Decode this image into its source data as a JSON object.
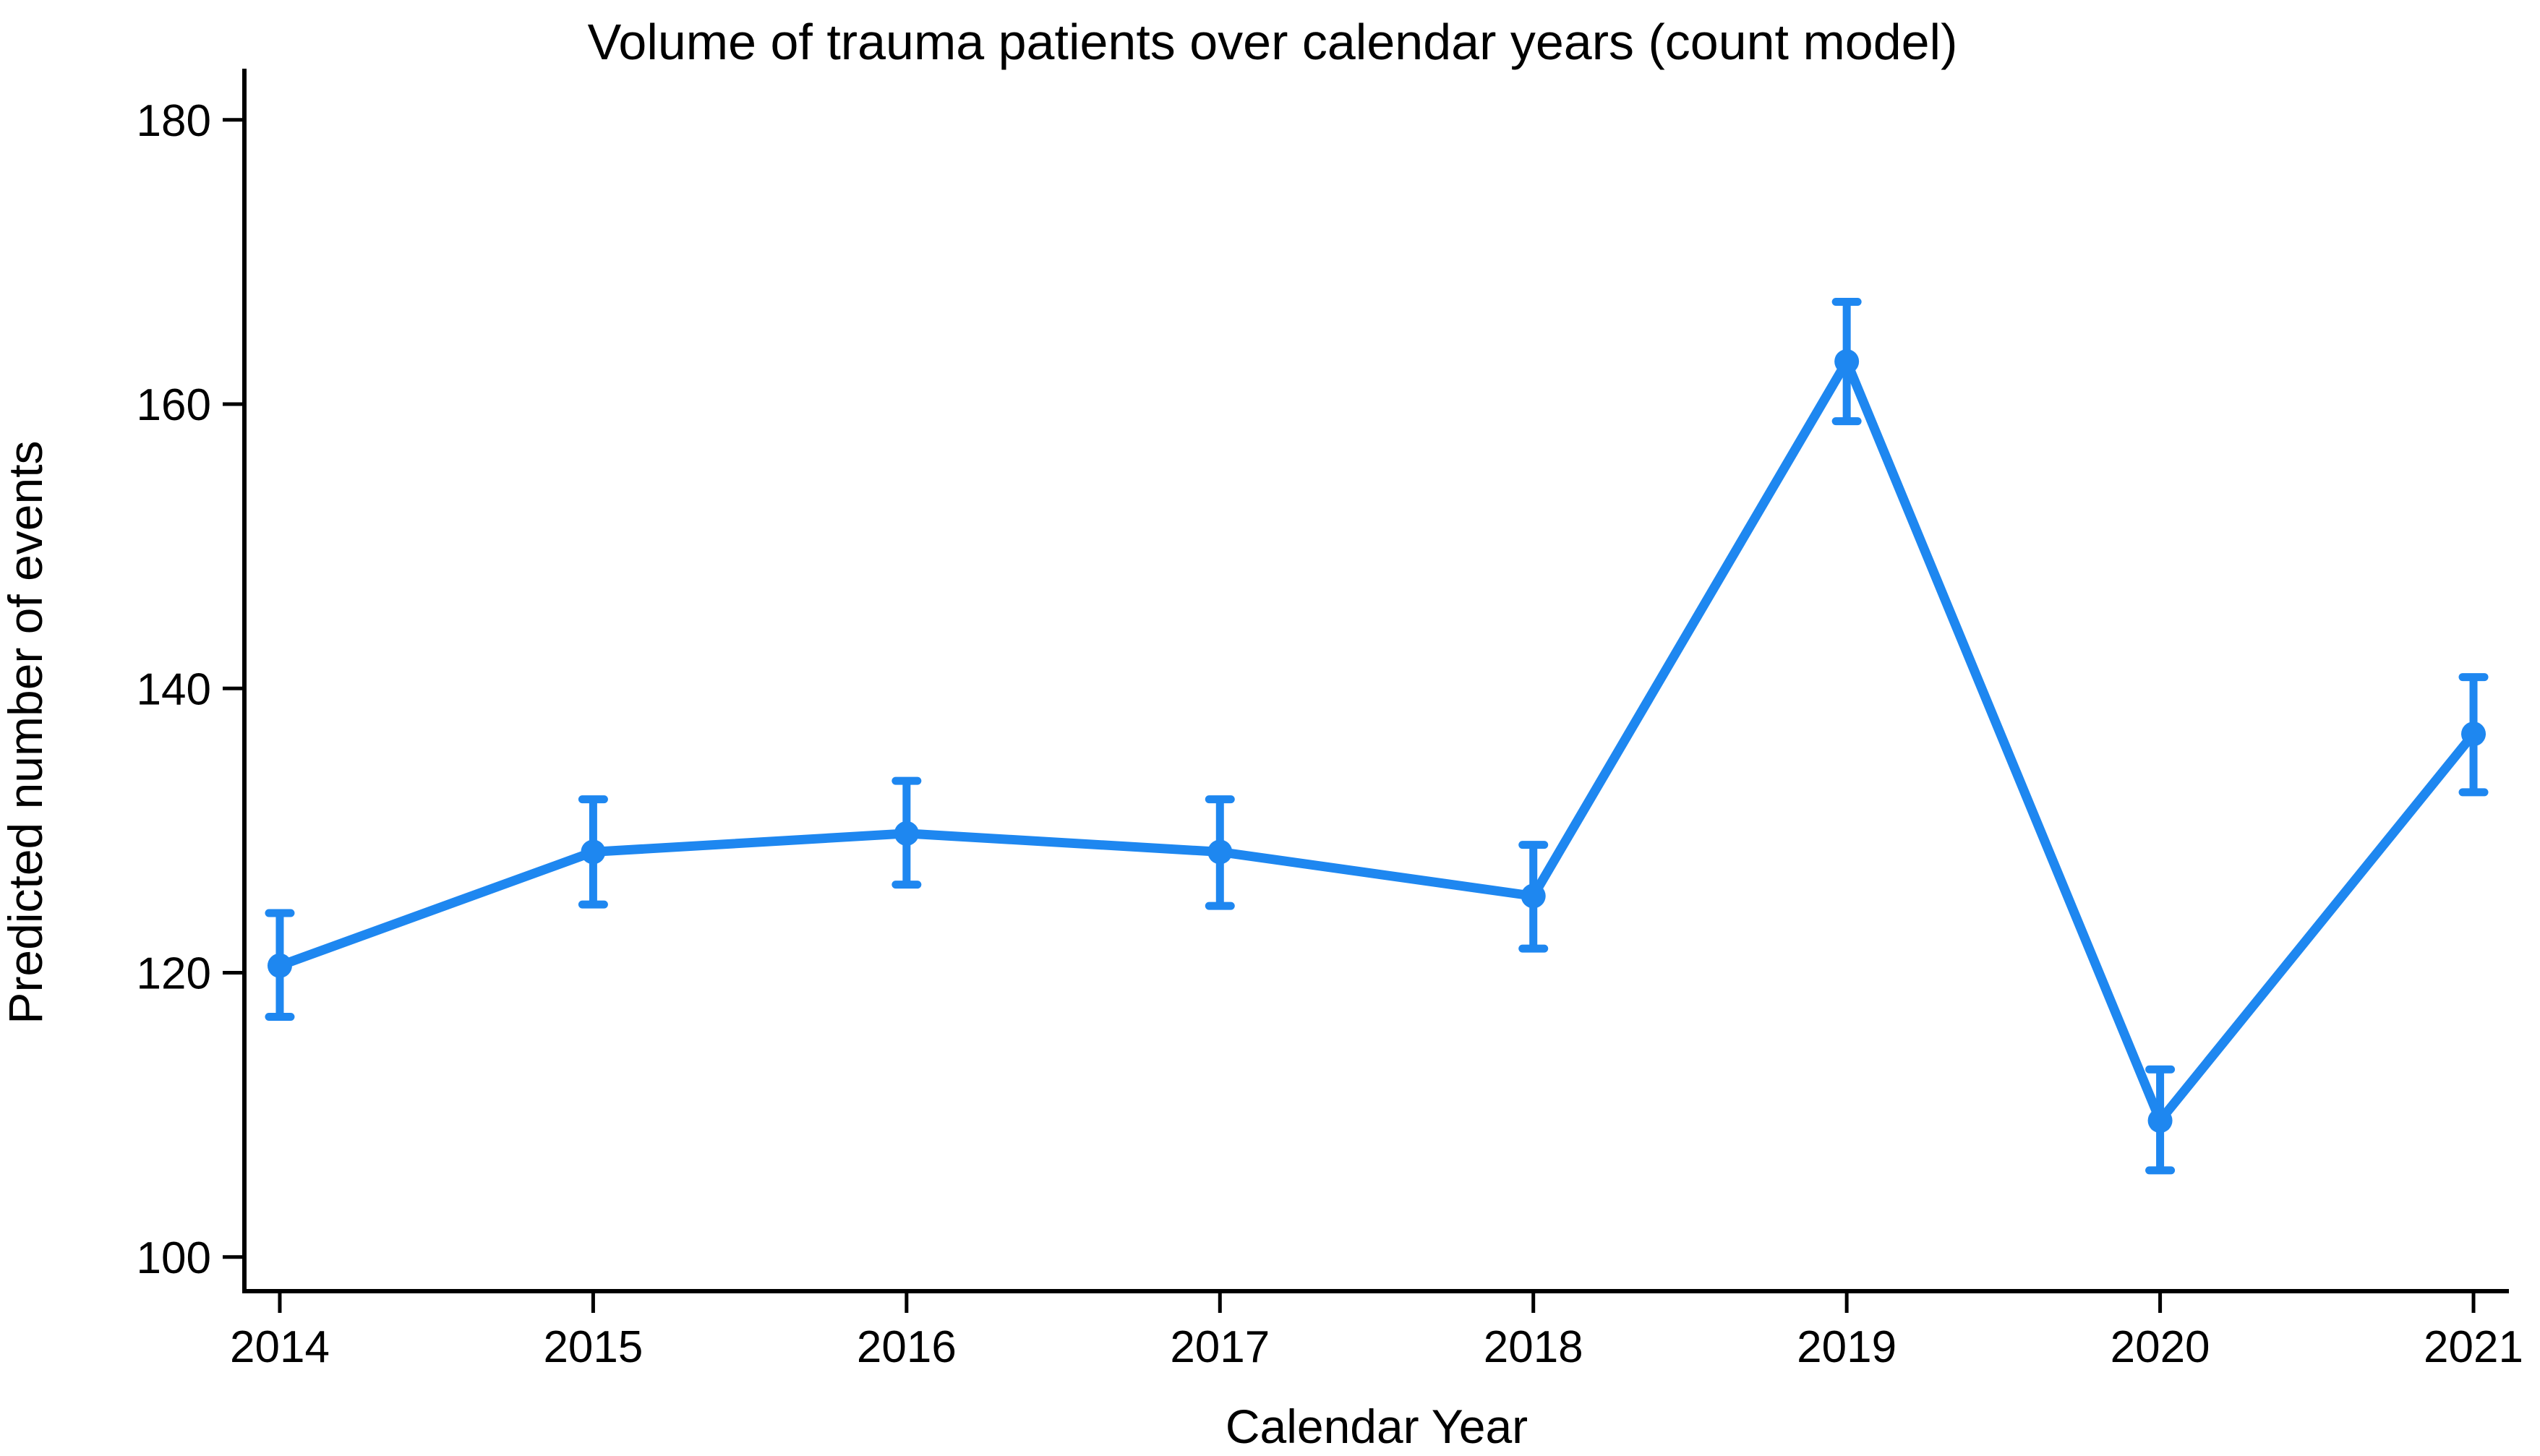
{
  "figure": {
    "title": "Volume of trauma patients over calendar years (count model)",
    "x_axis_label": "Calendar Year",
    "y_axis_label": "Predicted number of events"
  },
  "chart_data": {
    "type": "line",
    "title": "Volume of trauma patients over calendar years (count model)",
    "xlabel": "Calendar Year",
    "ylabel": "Predicted number of events",
    "x": [
      2014,
      2015,
      2016,
      2017,
      2018,
      2019,
      2020,
      2021
    ],
    "series": [
      {
        "name": "Predicted number of events",
        "values": [
          120.5,
          128.5,
          129.8,
          128.5,
          125.4,
          163.0,
          109.6,
          136.8
        ],
        "ci_low": [
          116.9,
          124.8,
          126.2,
          124.7,
          121.7,
          158.8,
          106.1,
          132.7
        ],
        "ci_high": [
          124.2,
          132.2,
          133.5,
          132.2,
          129.0,
          167.2,
          113.2,
          140.8
        ]
      }
    ],
    "y_ticks": [
      100,
      120,
      140,
      160,
      180
    ],
    "x_ticks": [
      2014,
      2015,
      2016,
      2017,
      2018,
      2019,
      2020,
      2021
    ],
    "ylim": [
      97.6,
      183.6
    ],
    "xlim": [
      2013.887,
      2021.113
    ],
    "grid": false,
    "legend": false,
    "error_bars": true,
    "marker": "circle",
    "line_color": "#1E87F0",
    "axis_color": "#000000",
    "background_color": "#FFFFFF"
  }
}
